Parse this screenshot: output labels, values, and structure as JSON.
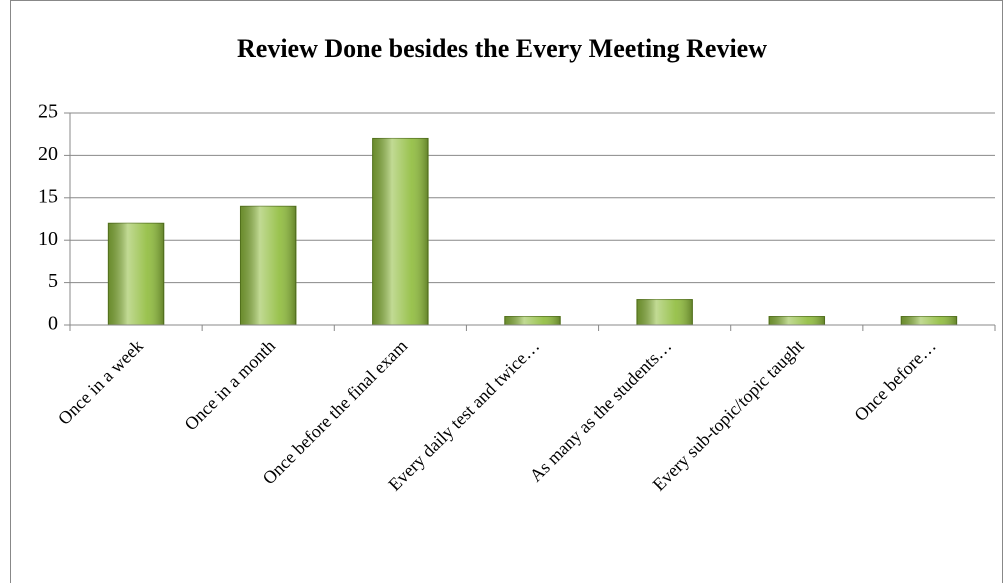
{
  "chart_data": {
    "type": "bar",
    "title": "Review Done besides the Every Meeting Review",
    "categories": [
      "Once in a week",
      "Once in a month",
      "Once before the final exam",
      "Every daily test and twice…",
      "As many as the students…",
      "Every sub-topic/topic taught",
      "Once before…"
    ],
    "values": [
      12,
      14,
      22,
      1,
      3,
      1,
      1
    ],
    "color": "#8fbc3c",
    "ylim": [
      0,
      25
    ],
    "yticks": [
      0,
      5,
      10,
      15,
      20,
      25
    ],
    "grid": true
  }
}
